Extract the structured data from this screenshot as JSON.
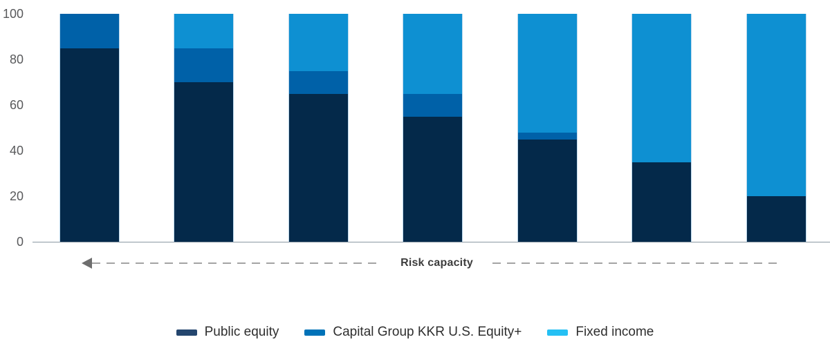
{
  "chart_data": {
    "type": "bar",
    "stacked": true,
    "title": "",
    "xlabel": "",
    "ylabel": "",
    "categories": [
      "",
      "",
      "",
      "",
      "",
      "",
      ""
    ],
    "series": [
      {
        "name": "Public equity",
        "color": "#04294A",
        "legend_color": "#24466E",
        "values": [
          85,
          70,
          65,
          55,
          45,
          35,
          20
        ]
      },
      {
        "name": "Capital Group KKR U.S. Equity+",
        "color": "#0061A8",
        "legend_color": "#0072B8",
        "values": [
          15,
          15,
          10,
          10,
          3,
          0,
          0
        ]
      },
      {
        "name": "Fixed income",
        "color": "#0E90D2",
        "legend_color": "#25C0F4",
        "values": [
          0,
          15,
          25,
          35,
          52,
          65,
          80
        ]
      }
    ],
    "yticks": [
      0,
      20,
      40,
      60,
      80,
      100
    ],
    "ylim": [
      0,
      100
    ],
    "grid": false,
    "legend_position": "bottom",
    "annotation": {
      "label": "Risk capacity",
      "arrow_direction": "left"
    }
  },
  "palette": {
    "axis_line": "#8A97A3",
    "tick_label": "#58595B",
    "dash_line": "#A3A3A3",
    "arrow": "#6E6E6E",
    "annotation_text": "#3C3C3C",
    "legend_text": "#2E2E2E"
  }
}
